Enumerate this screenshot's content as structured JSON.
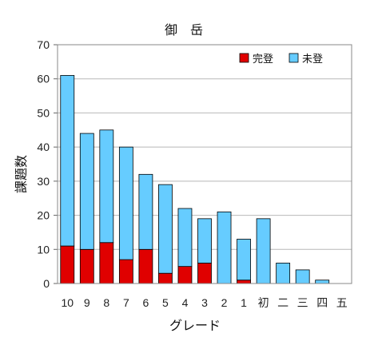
{
  "chart_data": {
    "type": "bar",
    "stacked": true,
    "title": "御　岳",
    "xlabel": "グレード",
    "ylabel": "課題数",
    "ylim": [
      0,
      70
    ],
    "yticks": [
      0,
      10,
      20,
      30,
      40,
      50,
      60,
      70
    ],
    "grid": true,
    "legend_position": "top-right",
    "categories": [
      "10",
      "9",
      "8",
      "7",
      "6",
      "5",
      "4",
      "3",
      "2",
      "1",
      "初",
      "二",
      "三",
      "四",
      "五"
    ],
    "series": [
      {
        "name": "完登",
        "color": "#e00000",
        "values": [
          11,
          10,
          12,
          7,
          10,
          3,
          5,
          6,
          0,
          1,
          0,
          0,
          0,
          0,
          0
        ]
      },
      {
        "name": "未登",
        "color": "#66ccff",
        "values": [
          50,
          34,
          33,
          33,
          22,
          26,
          17,
          13,
          21,
          12,
          19,
          6,
          4,
          1,
          0
        ]
      }
    ]
  }
}
